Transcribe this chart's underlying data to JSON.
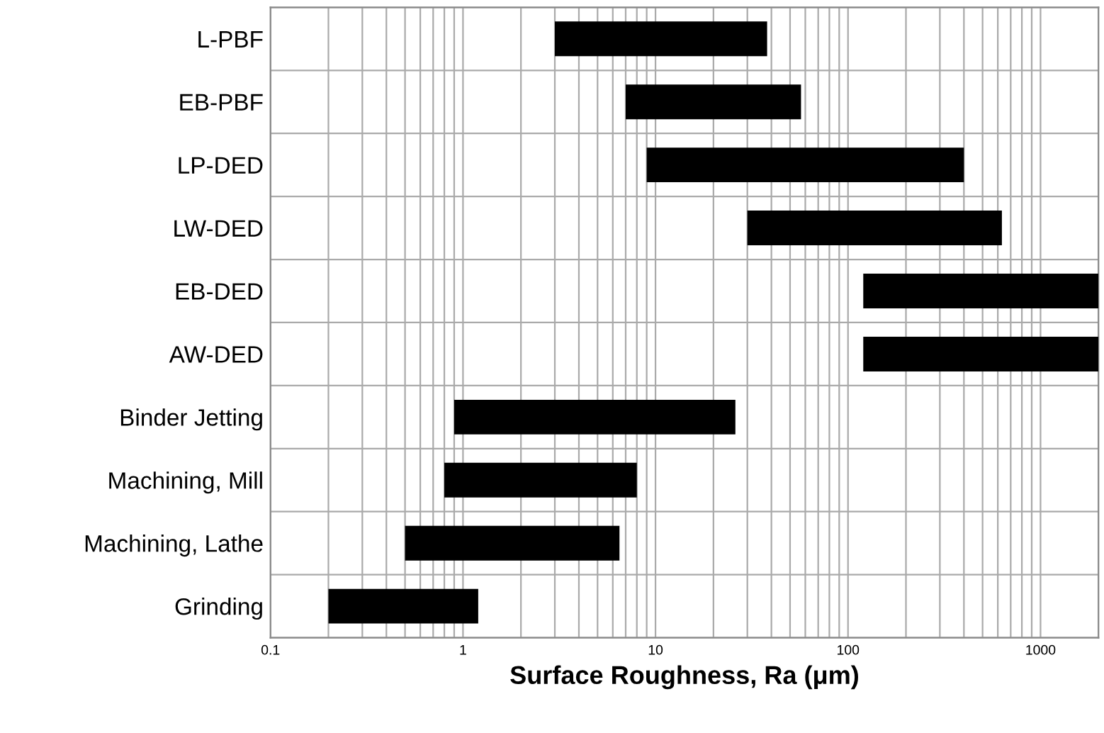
{
  "chart_data": {
    "type": "bar",
    "orientation": "horizontal",
    "log": "x",
    "categories": [
      "L-PBF",
      "EB-PBF",
      "LP-DED",
      "LW-DED",
      "EB-DED",
      "AW-DED",
      "Binder Jetting",
      "Machining, Mill",
      "Machining, Lathe",
      "Grinding"
    ],
    "base": [
      3,
      7,
      9,
      30,
      120,
      120,
      0.9,
      0.8,
      0.5,
      0.2
    ],
    "values": [
      35,
      50,
      391,
      600,
      1880,
      1880,
      25.1,
      7.2,
      6,
      1.0
    ],
    "color": "#000000",
    "xlabel": "Surface Roughness, Ra (μm)",
    "xlim": [
      0.1,
      2000
    ],
    "xticks": [
      0.1,
      1,
      10,
      100,
      1000
    ],
    "grid": true
  }
}
